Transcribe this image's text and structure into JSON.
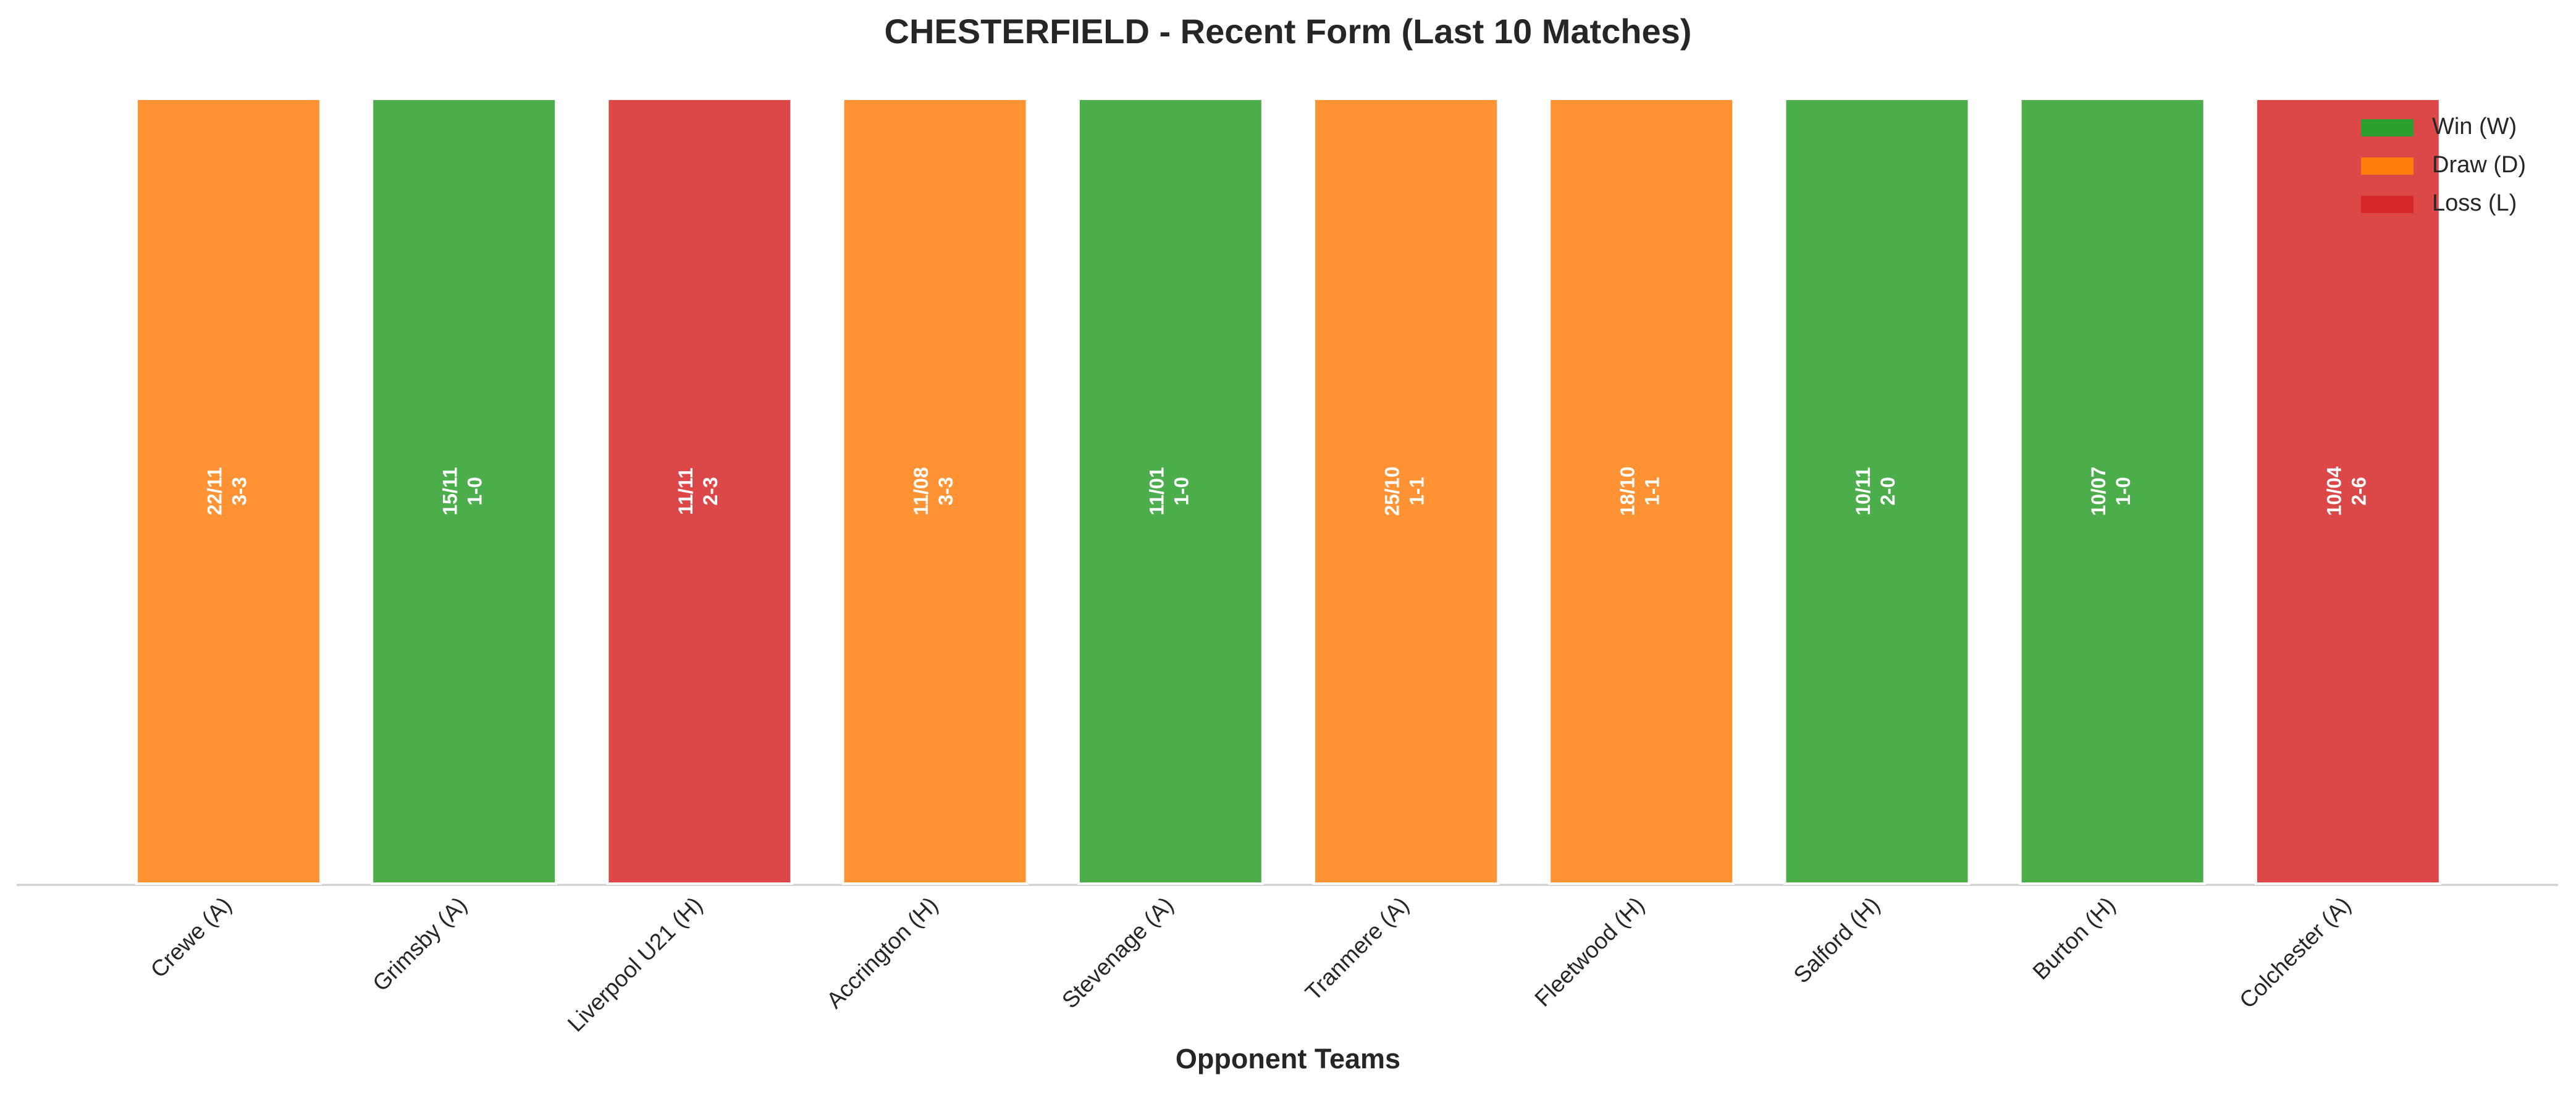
{
  "chart_data": {
    "type": "bar",
    "title": "CHESTERFIELD - Recent Form (Last 10 Matches)",
    "x_label": "Opponent Teams",
    "categories": [
      "Crewe (A)",
      "Grimsby (A)",
      "Liverpool U21 (H)",
      "Accrington (H)",
      "Stevenage (A)",
      "Tranmere (A)",
      "Fleetwood (H)",
      "Salford (H)",
      "Burton (H)",
      "Colchester (A)"
    ],
    "values": [
      1,
      1,
      1,
      1,
      1,
      1,
      1,
      1,
      1,
      1
    ],
    "ylim": [
      0,
      1
    ],
    "dates": [
      "22/11",
      "15/11",
      "11/11",
      "11/08",
      "11/01",
      "25/10",
      "18/10",
      "10/11",
      "10/07",
      "10/04"
    ],
    "scores": [
      "3-3",
      "1-0",
      "2-3",
      "3-3",
      "1-0",
      "1-1",
      "1-1",
      "2-0",
      "1-0",
      "2-6"
    ],
    "colors": [
      "#ff7f0e",
      "#2ca02c",
      "#d62728",
      "#ff7f0e",
      "#2ca02c",
      "#ff7f0e",
      "#ff7f0e",
      "#2ca02c",
      "#2ca02c",
      "#d62728"
    ],
    "legend": [
      {
        "name": "Win (W)",
        "color": "#2ca02c"
      },
      {
        "name": "Draw (D)",
        "color": "#ff7f0e"
      },
      {
        "name": "Loss (L)",
        "color": "#d62728"
      }
    ],
    "legend_position": "upper right"
  }
}
